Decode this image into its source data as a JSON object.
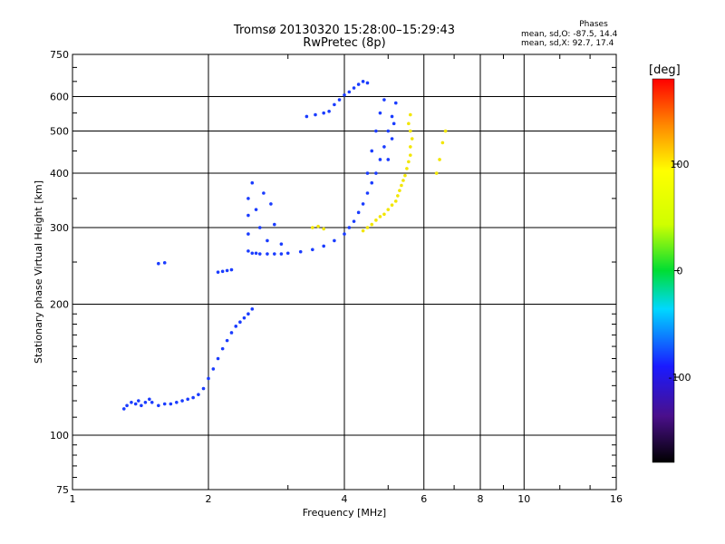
{
  "chart_data": {
    "type": "scatter",
    "title": "Tromsø 20130320 15:28:00–15:29:43",
    "subtitle": "RwPretec (8p)",
    "xlabel": "Frequency [MHz]",
    "ylabel": "Stationary phase Virtual Height [km]",
    "x_scale": "log",
    "y_scale": "log",
    "xlim": [
      1,
      16
    ],
    "ylim": [
      75,
      750
    ],
    "x_ticks": [
      1,
      2,
      4,
      6,
      8,
      10,
      16
    ],
    "x_tick_labels": [
      "1",
      "2",
      "4",
      "6",
      "8",
      "10",
      "16"
    ],
    "x_grid": [
      2,
      4,
      6,
      8,
      10,
      16
    ],
    "y_ticks": [
      75,
      100,
      200,
      300,
      400,
      500,
      600,
      750
    ],
    "y_tick_labels": [
      "75",
      "100",
      "200",
      "300",
      "400",
      "500",
      "600",
      "750"
    ],
    "y_grid": [
      100,
      200,
      300,
      400,
      500,
      600
    ],
    "grid": true,
    "stats": {
      "title": "Phases",
      "o_mode": "mean, sd,O: -87.5, 14.4",
      "x_mode": "mean, sd,X: 92.7, 17.4"
    },
    "colorbar": {
      "label": "[deg]",
      "range": [
        -180,
        180
      ],
      "ticks": [
        100,
        0,
        -100
      ],
      "tick_labels": [
        "100",
        "0",
        "-100"
      ]
    },
    "series": [
      {
        "mode": "O",
        "phase_deg": -100,
        "points": [
          [
            1.3,
            115
          ],
          [
            1.32,
            117
          ],
          [
            1.35,
            119
          ],
          [
            1.38,
            118
          ],
          [
            1.4,
            120
          ],
          [
            1.42,
            117
          ],
          [
            1.45,
            119
          ],
          [
            1.48,
            121
          ],
          [
            1.5,
            119
          ],
          [
            1.55,
            117
          ],
          [
            1.6,
            118
          ],
          [
            1.65,
            118
          ],
          [
            1.7,
            119
          ],
          [
            1.75,
            120
          ],
          [
            1.8,
            121
          ],
          [
            1.85,
            122
          ],
          [
            1.9,
            124
          ],
          [
            1.95,
            128
          ],
          [
            2.0,
            135
          ],
          [
            2.05,
            142
          ],
          [
            2.1,
            150
          ],
          [
            2.15,
            158
          ],
          [
            2.2,
            165
          ],
          [
            2.25,
            172
          ],
          [
            2.3,
            178
          ],
          [
            2.35,
            182
          ],
          [
            2.4,
            186
          ],
          [
            2.45,
            190
          ],
          [
            2.5,
            195
          ],
          [
            2.1,
            237
          ],
          [
            2.15,
            238
          ],
          [
            2.2,
            239
          ],
          [
            2.25,
            240
          ],
          [
            1.55,
            248
          ],
          [
            1.6,
            249
          ],
          [
            2.45,
            265
          ],
          [
            2.5,
            262
          ],
          [
            2.55,
            262
          ],
          [
            2.6,
            261
          ],
          [
            2.7,
            261
          ],
          [
            2.8,
            261
          ],
          [
            2.9,
            261
          ],
          [
            3.0,
            262
          ],
          [
            3.2,
            264
          ],
          [
            3.4,
            267
          ],
          [
            3.6,
            272
          ],
          [
            3.8,
            280
          ],
          [
            4.0,
            290
          ],
          [
            4.1,
            300
          ],
          [
            4.2,
            310
          ],
          [
            4.3,
            325
          ],
          [
            4.4,
            340
          ],
          [
            4.5,
            360
          ],
          [
            4.6,
            380
          ],
          [
            4.7,
            400
          ],
          [
            4.8,
            430
          ],
          [
            4.9,
            460
          ],
          [
            5.0,
            500
          ],
          [
            5.1,
            540
          ],
          [
            5.2,
            580
          ],
          [
            2.45,
            290
          ],
          [
            2.45,
            320
          ],
          [
            2.45,
            350
          ],
          [
            2.5,
            380
          ],
          [
            2.55,
            330
          ],
          [
            2.6,
            300
          ],
          [
            2.65,
            360
          ],
          [
            2.7,
            280
          ],
          [
            2.75,
            340
          ],
          [
            2.8,
            305
          ],
          [
            2.9,
            275
          ],
          [
            3.3,
            540
          ],
          [
            3.45,
            545
          ],
          [
            3.6,
            550
          ],
          [
            3.7,
            555
          ],
          [
            3.8,
            575
          ],
          [
            3.9,
            590
          ],
          [
            4.0,
            605
          ],
          [
            4.1,
            615
          ],
          [
            4.2,
            628
          ],
          [
            4.3,
            640
          ],
          [
            4.4,
            650
          ],
          [
            4.5,
            645
          ],
          [
            4.5,
            400
          ],
          [
            4.6,
            450
          ],
          [
            4.7,
            500
          ],
          [
            4.8,
            550
          ],
          [
            4.9,
            590
          ],
          [
            5.0,
            430
          ],
          [
            5.1,
            480
          ],
          [
            5.15,
            520
          ]
        ]
      },
      {
        "mode": "X",
        "phase_deg": 100,
        "points": [
          [
            4.4,
            295
          ],
          [
            4.5,
            300
          ],
          [
            4.6,
            305
          ],
          [
            4.7,
            312
          ],
          [
            4.8,
            318
          ],
          [
            4.9,
            322
          ],
          [
            5.0,
            330
          ],
          [
            5.1,
            338
          ],
          [
            5.2,
            345
          ],
          [
            5.25,
            355
          ],
          [
            5.3,
            365
          ],
          [
            5.35,
            375
          ],
          [
            5.4,
            385
          ],
          [
            5.45,
            395
          ],
          [
            5.5,
            410
          ],
          [
            5.55,
            425
          ],
          [
            5.6,
            440
          ],
          [
            5.6,
            460
          ],
          [
            5.65,
            480
          ],
          [
            5.6,
            500
          ],
          [
            5.55,
            520
          ],
          [
            5.6,
            545
          ],
          [
            3.4,
            300
          ],
          [
            3.5,
            302
          ],
          [
            3.6,
            298
          ],
          [
            6.5,
            430
          ],
          [
            6.6,
            470
          ],
          [
            6.7,
            500
          ],
          [
            6.4,
            400
          ]
        ]
      }
    ]
  }
}
